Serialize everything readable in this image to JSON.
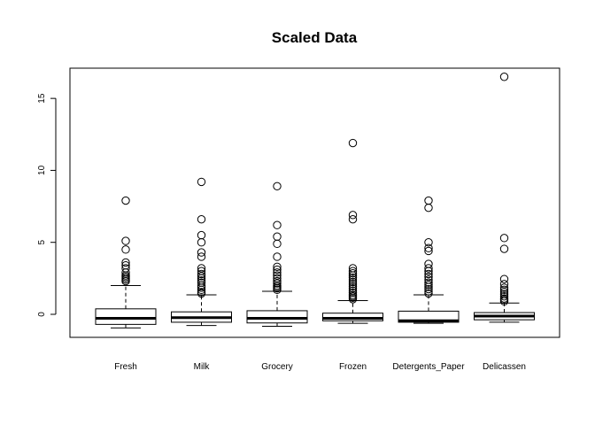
{
  "chart_data": {
    "type": "boxplot",
    "title": "Scaled Data",
    "xlabel": "",
    "ylabel": "",
    "ylim": [
      -1.6,
      17.1
    ],
    "yticks": [
      0,
      5,
      10,
      15
    ],
    "grid": false,
    "categories": [
      "Fresh",
      "Milk",
      "Grocery",
      "Frozen",
      "Detergents_Paper",
      "Delicassen"
    ],
    "boxes": [
      {
        "name": "Fresh",
        "whisker_low": -0.95,
        "q1": -0.7,
        "median": -0.28,
        "q3": 0.38,
        "whisker_high": 2.0,
        "outliers": [
          2.3,
          2.4,
          2.5,
          2.6,
          2.7,
          2.9,
          3.2,
          3.4,
          3.6,
          4.5,
          5.1,
          7.9
        ]
      },
      {
        "name": "Milk",
        "whisker_low": -0.78,
        "q1": -0.55,
        "median": -0.23,
        "q3": 0.17,
        "whisker_high": 1.35,
        "outliers": [
          1.45,
          1.55,
          1.7,
          1.85,
          2.0,
          2.2,
          2.35,
          2.5,
          2.65,
          2.8,
          3.0,
          3.2,
          4.0,
          4.3,
          5.0,
          5.5,
          6.6,
          9.2
        ]
      },
      {
        "name": "Grocery",
        "whisker_low": -0.83,
        "q1": -0.6,
        "median": -0.28,
        "q3": 0.25,
        "whisker_high": 1.6,
        "outliers": [
          1.7,
          1.8,
          1.9,
          2.0,
          2.15,
          2.3,
          2.5,
          2.7,
          2.9,
          3.1,
          3.3,
          4.0,
          4.9,
          5.4,
          6.2,
          8.9
        ]
      },
      {
        "name": "Frozen",
        "whisker_low": -0.62,
        "q1": -0.45,
        "median": -0.28,
        "q3": 0.08,
        "whisker_high": 0.95,
        "outliers": [
          1.05,
          1.15,
          1.25,
          1.35,
          1.5,
          1.65,
          1.8,
          1.95,
          2.1,
          2.25,
          2.4,
          2.55,
          2.7,
          2.85,
          3.0,
          3.2,
          6.6,
          6.9,
          11.9
        ]
      },
      {
        "name": "Detergents_Paper",
        "whisker_low": -0.62,
        "q1": -0.55,
        "median": -0.45,
        "q3": 0.22,
        "whisker_high": 1.35,
        "outliers": [
          1.45,
          1.6,
          1.75,
          1.9,
          2.05,
          2.2,
          2.4,
          2.6,
          2.8,
          3.0,
          3.2,
          3.5,
          4.4,
          4.6,
          5.0,
          7.4,
          7.9
        ]
      },
      {
        "name": "Delicassen",
        "whisker_low": -0.55,
        "q1": -0.38,
        "median": -0.12,
        "q3": 0.12,
        "whisker_high": 0.78,
        "outliers": [
          0.9,
          1.0,
          1.1,
          1.25,
          1.4,
          1.55,
          1.7,
          1.85,
          2.1,
          2.45,
          4.55,
          5.3,
          16.5
        ]
      }
    ]
  }
}
